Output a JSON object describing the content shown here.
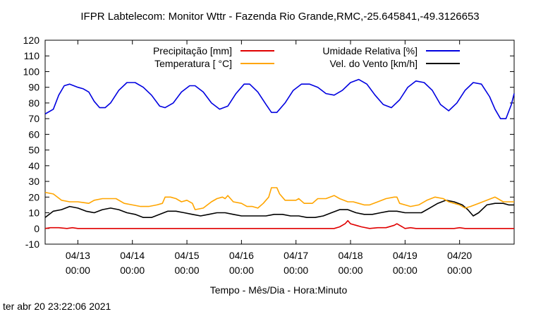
{
  "chart_data": {
    "type": "line",
    "title": "IFPR Labtelecom: Monitor Wttr - Fazenda Rio Grande,RMC,-25.645841,-49.3126653",
    "xlabel": "Tempo - Mês/Dia - Hora:Minuto",
    "ylabel": "",
    "ylim": [
      -10,
      120
    ],
    "xlim": [
      -0.6,
      8.0
    ],
    "x_unit": "days since 04/13 00:00",
    "yticks": [
      -10,
      0,
      10,
      20,
      30,
      40,
      50,
      60,
      70,
      80,
      90,
      100,
      110,
      120
    ],
    "xticks": [
      {
        "x": 0,
        "date": "04/13",
        "time": "00:00"
      },
      {
        "x": 1,
        "date": "04/14",
        "time": "00:00"
      },
      {
        "x": 2,
        "date": "04/15",
        "time": "00:00"
      },
      {
        "x": 3,
        "date": "04/16",
        "time": "00:00"
      },
      {
        "x": 4,
        "date": "04/17",
        "time": "00:00"
      },
      {
        "x": 5,
        "date": "04/18",
        "time": "00:00"
      },
      {
        "x": 6,
        "date": "04/19",
        "time": "00:00"
      },
      {
        "x": 7,
        "date": "04/20",
        "time": "00:00"
      }
    ],
    "grid": false,
    "legend_position": "top",
    "series": [
      {
        "name": "Precipitação [mm]",
        "color": "#e00000",
        "points": [
          [
            -0.6,
            0
          ],
          [
            -0.5,
            0.5
          ],
          [
            -0.35,
            0.5
          ],
          [
            -0.2,
            0
          ],
          [
            -0.1,
            0.5
          ],
          [
            0,
            0
          ],
          [
            4.7,
            0
          ],
          [
            4.8,
            1
          ],
          [
            4.9,
            3
          ],
          [
            4.95,
            5
          ],
          [
            5.0,
            3
          ],
          [
            5.1,
            2
          ],
          [
            5.2,
            1
          ],
          [
            5.35,
            0
          ],
          [
            5.5,
            0.5
          ],
          [
            5.65,
            0.5
          ],
          [
            5.8,
            2
          ],
          [
            5.85,
            3
          ],
          [
            5.9,
            2
          ],
          [
            5.95,
            1
          ],
          [
            6.0,
            0
          ],
          [
            6.1,
            0.5
          ],
          [
            6.2,
            0
          ],
          [
            6.9,
            0
          ],
          [
            7.0,
            0.5
          ],
          [
            7.1,
            0
          ],
          [
            8.0,
            0
          ]
        ]
      },
      {
        "name": "Temperatura [ °C]",
        "color": "#ffa500",
        "points": [
          [
            -0.6,
            23
          ],
          [
            -0.45,
            22
          ],
          [
            -0.3,
            18
          ],
          [
            -0.15,
            17
          ],
          [
            0,
            17
          ],
          [
            0.1,
            16.5
          ],
          [
            0.2,
            16
          ],
          [
            0.3,
            18
          ],
          [
            0.45,
            19
          ],
          [
            0.6,
            19
          ],
          [
            0.7,
            19
          ],
          [
            0.85,
            16
          ],
          [
            1.0,
            15
          ],
          [
            1.15,
            14
          ],
          [
            1.3,
            14
          ],
          [
            1.45,
            15
          ],
          [
            1.55,
            16
          ],
          [
            1.6,
            20
          ],
          [
            1.7,
            20
          ],
          [
            1.8,
            19
          ],
          [
            1.9,
            17
          ],
          [
            2.0,
            18
          ],
          [
            2.1,
            16
          ],
          [
            2.15,
            12
          ],
          [
            2.3,
            13
          ],
          [
            2.45,
            17
          ],
          [
            2.55,
            19
          ],
          [
            2.65,
            20
          ],
          [
            2.7,
            19
          ],
          [
            2.75,
            21
          ],
          [
            2.85,
            17
          ],
          [
            3.0,
            16
          ],
          [
            3.1,
            14
          ],
          [
            3.2,
            14
          ],
          [
            3.3,
            13
          ],
          [
            3.4,
            16
          ],
          [
            3.5,
            20
          ],
          [
            3.55,
            26
          ],
          [
            3.65,
            26
          ],
          [
            3.7,
            22
          ],
          [
            3.8,
            18
          ],
          [
            3.9,
            18
          ],
          [
            4.0,
            18
          ],
          [
            4.05,
            19
          ],
          [
            4.15,
            16
          ],
          [
            4.3,
            16
          ],
          [
            4.4,
            19
          ],
          [
            4.55,
            19
          ],
          [
            4.7,
            21
          ],
          [
            4.8,
            19
          ],
          [
            4.95,
            17
          ],
          [
            5.05,
            17
          ],
          [
            5.15,
            16
          ],
          [
            5.25,
            15
          ],
          [
            5.35,
            15
          ],
          [
            5.5,
            17
          ],
          [
            5.65,
            19
          ],
          [
            5.8,
            20
          ],
          [
            5.85,
            20
          ],
          [
            5.9,
            16
          ],
          [
            6.0,
            15
          ],
          [
            6.1,
            14
          ],
          [
            6.25,
            15
          ],
          [
            6.4,
            18
          ],
          [
            6.55,
            20
          ],
          [
            6.7,
            19
          ],
          [
            6.8,
            17
          ],
          [
            6.9,
            16
          ],
          [
            7.0,
            15
          ],
          [
            7.1,
            13
          ],
          [
            7.2,
            14
          ],
          [
            7.35,
            16
          ],
          [
            7.5,
            18
          ],
          [
            7.65,
            20
          ],
          [
            7.7,
            19
          ],
          [
            7.8,
            17
          ],
          [
            8.0,
            17
          ]
        ]
      },
      {
        "name": "Umidade Relativa [%]",
        "color": "#0000e0",
        "points": [
          [
            -0.6,
            73
          ],
          [
            -0.45,
            76
          ],
          [
            -0.35,
            85
          ],
          [
            -0.25,
            91
          ],
          [
            -0.15,
            92
          ],
          [
            0,
            90
          ],
          [
            0.1,
            89
          ],
          [
            0.2,
            87
          ],
          [
            0.3,
            81
          ],
          [
            0.4,
            77
          ],
          [
            0.5,
            77
          ],
          [
            0.6,
            80
          ],
          [
            0.75,
            88
          ],
          [
            0.9,
            93
          ],
          [
            1.05,
            93
          ],
          [
            1.2,
            90
          ],
          [
            1.35,
            85
          ],
          [
            1.5,
            78
          ],
          [
            1.6,
            77
          ],
          [
            1.75,
            80
          ],
          [
            1.9,
            87
          ],
          [
            2.05,
            91
          ],
          [
            2.15,
            91
          ],
          [
            2.3,
            87
          ],
          [
            2.45,
            80
          ],
          [
            2.6,
            76
          ],
          [
            2.75,
            78
          ],
          [
            2.9,
            86
          ],
          [
            3.05,
            92
          ],
          [
            3.15,
            92
          ],
          [
            3.3,
            87
          ],
          [
            3.45,
            79
          ],
          [
            3.55,
            74
          ],
          [
            3.65,
            74
          ],
          [
            3.8,
            80
          ],
          [
            3.95,
            88
          ],
          [
            4.1,
            92
          ],
          [
            4.25,
            92
          ],
          [
            4.4,
            90
          ],
          [
            4.55,
            86
          ],
          [
            4.7,
            85
          ],
          [
            4.85,
            88
          ],
          [
            5.0,
            93
          ],
          [
            5.15,
            95
          ],
          [
            5.3,
            92
          ],
          [
            5.45,
            85
          ],
          [
            5.6,
            79
          ],
          [
            5.75,
            77
          ],
          [
            5.9,
            82
          ],
          [
            6.05,
            90
          ],
          [
            6.2,
            94
          ],
          [
            6.35,
            93
          ],
          [
            6.5,
            88
          ],
          [
            6.65,
            79
          ],
          [
            6.8,
            75
          ],
          [
            6.95,
            80
          ],
          [
            7.1,
            88
          ],
          [
            7.25,
            93
          ],
          [
            7.4,
            92
          ],
          [
            7.55,
            84
          ],
          [
            7.65,
            76
          ],
          [
            7.75,
            70
          ],
          [
            7.85,
            70
          ],
          [
            7.95,
            79
          ],
          [
            8.0,
            86
          ]
        ]
      },
      {
        "name": "Vel. do Vento [km/h]",
        "color": "#000000",
        "points": [
          [
            -0.6,
            7
          ],
          [
            -0.45,
            11
          ],
          [
            -0.3,
            12
          ],
          [
            -0.15,
            14
          ],
          [
            0,
            13
          ],
          [
            0.15,
            11
          ],
          [
            0.3,
            10
          ],
          [
            0.45,
            12
          ],
          [
            0.6,
            13
          ],
          [
            0.75,
            12
          ],
          [
            0.9,
            10
          ],
          [
            1.05,
            9
          ],
          [
            1.2,
            7
          ],
          [
            1.35,
            7
          ],
          [
            1.5,
            9
          ],
          [
            1.65,
            11
          ],
          [
            1.8,
            11
          ],
          [
            1.95,
            10
          ],
          [
            2.1,
            9
          ],
          [
            2.25,
            8
          ],
          [
            2.4,
            9
          ],
          [
            2.55,
            10
          ],
          [
            2.7,
            10
          ],
          [
            2.85,
            9
          ],
          [
            3.0,
            8
          ],
          [
            3.15,
            8
          ],
          [
            3.3,
            8
          ],
          [
            3.45,
            8
          ],
          [
            3.6,
            9
          ],
          [
            3.75,
            9
          ],
          [
            3.9,
            8
          ],
          [
            4.05,
            8
          ],
          [
            4.2,
            7
          ],
          [
            4.35,
            7
          ],
          [
            4.5,
            8
          ],
          [
            4.65,
            10
          ],
          [
            4.8,
            12
          ],
          [
            4.95,
            12
          ],
          [
            5.1,
            10
          ],
          [
            5.25,
            9
          ],
          [
            5.4,
            9
          ],
          [
            5.55,
            10
          ],
          [
            5.7,
            11
          ],
          [
            5.85,
            11
          ],
          [
            6.0,
            10
          ],
          [
            6.15,
            10
          ],
          [
            6.3,
            10
          ],
          [
            6.45,
            13
          ],
          [
            6.6,
            16
          ],
          [
            6.75,
            18
          ],
          [
            6.9,
            17
          ],
          [
            7.05,
            15
          ],
          [
            7.15,
            12
          ],
          [
            7.25,
            8
          ],
          [
            7.35,
            10
          ],
          [
            7.5,
            15
          ],
          [
            7.65,
            16
          ],
          [
            7.8,
            16
          ],
          [
            7.9,
            15
          ],
          [
            8.0,
            15
          ]
        ]
      }
    ]
  },
  "timestamp": "ter abr 20 23:22:06 2021"
}
